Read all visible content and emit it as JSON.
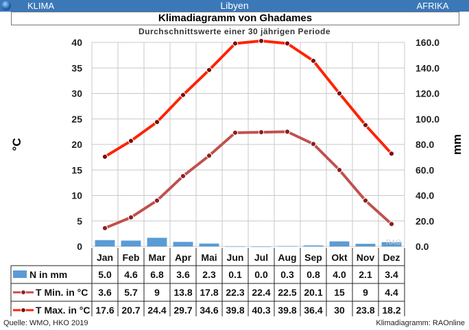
{
  "header": {
    "left_label": "KLIMA",
    "center_label": "Libyen",
    "right_label": "AFRIKA"
  },
  "title": "Klimadiagramm von Ghadames",
  "subtitle": "Durchschnittswerte einer 30 jährigen Periode",
  "footer": {
    "source": "Quelle: WMO, HKO 2019",
    "credit": "Klimadiagramm: RAOnline"
  },
  "watermark": "RAO",
  "chart_data": {
    "type": "bar+line",
    "categories": [
      "Jan",
      "Feb",
      "Mar",
      "Apr",
      "Mai",
      "Jun",
      "Jul",
      "Aug",
      "Sep",
      "Okt",
      "Nov",
      "Dez"
    ],
    "ylabel_left": "°C",
    "ylabel_right": "mm",
    "ylim_left": [
      0,
      40
    ],
    "ylim_right": [
      0,
      160
    ],
    "yticks_left": [
      "0",
      "5",
      "10",
      "15",
      "20",
      "25",
      "30",
      "35",
      "40"
    ],
    "yticks_right": [
      "0.0",
      "20.0",
      "40.0",
      "60.0",
      "80.0",
      "100.0",
      "120.0",
      "140.0",
      "160.0"
    ],
    "grid": true,
    "series": [
      {
        "name": "N in mm",
        "kind": "bar",
        "axis": "right",
        "color": "#5b9bd5",
        "values": [
          5.0,
          4.6,
          6.8,
          3.6,
          2.3,
          0.1,
          0.0,
          0.3,
          0.8,
          4.0,
          2.1,
          3.4
        ],
        "labels": [
          "5.0",
          "4.6",
          "6.8",
          "3.6",
          "2.3",
          "0.1",
          "0.0",
          "0.3",
          "0.8",
          "4.0",
          "2.1",
          "3.4"
        ]
      },
      {
        "name": "T Min. in °C",
        "kind": "line",
        "axis": "left",
        "color": "#c0504d",
        "values": [
          3.6,
          5.7,
          9,
          13.8,
          17.8,
          22.3,
          22.4,
          22.5,
          20.1,
          15,
          9,
          4.4
        ],
        "labels": [
          "3.6",
          "5.7",
          "9",
          "13.8",
          "17.8",
          "22.3",
          "22.4",
          "22.5",
          "20.1",
          "15",
          "9",
          "4.4"
        ]
      },
      {
        "name": "T Max. in °C",
        "kind": "line",
        "axis": "left",
        "color": "#ff2200",
        "values": [
          17.6,
          20.7,
          24.4,
          29.7,
          34.6,
          39.8,
          40.3,
          39.8,
          36.4,
          30,
          23.8,
          18.2
        ],
        "labels": [
          "17.6",
          "20.7",
          "24.4",
          "29.7",
          "34.6",
          "39.8",
          "40.3",
          "39.8",
          "36.4",
          "30",
          "23.8",
          "18.2"
        ]
      }
    ]
  }
}
